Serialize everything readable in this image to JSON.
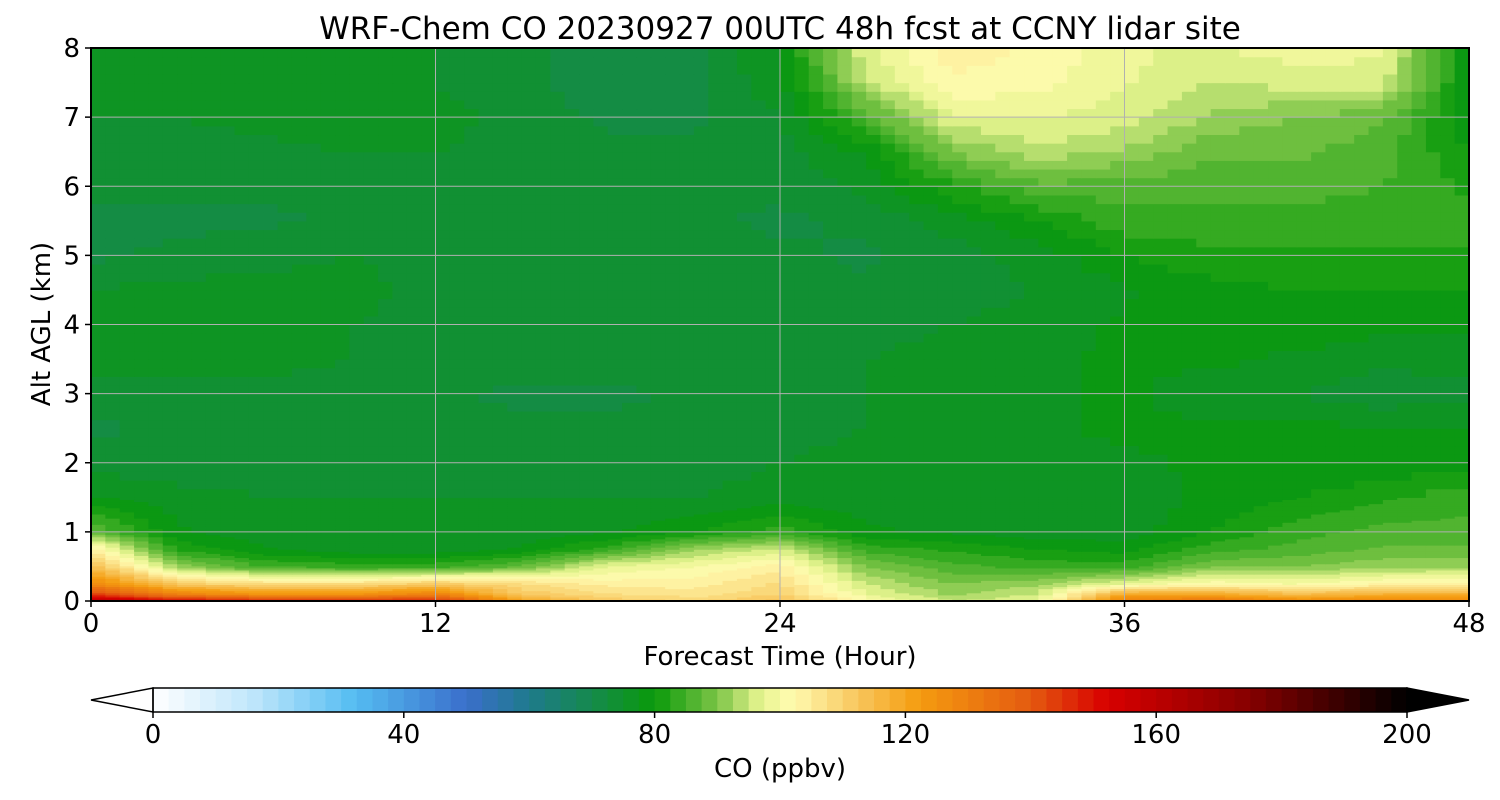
{
  "chart_data": {
    "type": "heatmap",
    "title": "WRF-Chem CO  20230927 00UTC 48h fcst at CCNY lidar site",
    "xlabel": "Forecast Time (Hour)",
    "ylabel": "Alt AGL (km)",
    "xlim": [
      0,
      48
    ],
    "ylim": [
      0,
      8
    ],
    "xticks": [
      "0",
      "12",
      "24",
      "36",
      "48"
    ],
    "yticks": [
      "0",
      "1",
      "2",
      "3",
      "4",
      "5",
      "6",
      "7",
      "8"
    ],
    "grid": true,
    "z_note": "approximate CO values read from the contour colours",
    "x": [
      0,
      3,
      6,
      9,
      12,
      15,
      18,
      21,
      24,
      27,
      30,
      33,
      36,
      39,
      42,
      45,
      48
    ],
    "y": [
      0,
      0.1,
      0.25,
      0.5,
      0.75,
      1,
      1.5,
      2,
      2.5,
      3,
      3.5,
      4,
      4.5,
      5,
      5.5,
      6,
      6.5,
      7,
      7.5,
      8
    ],
    "z": [
      [
        165,
        155,
        150,
        150,
        150,
        122,
        112,
        110,
        114,
        102,
        95,
        98,
        130,
        135,
        128,
        130,
        128
      ],
      [
        145,
        130,
        125,
        125,
        130,
        112,
        108,
        106,
        110,
        98,
        92,
        95,
        120,
        120,
        115,
        118,
        118
      ],
      [
        128,
        112,
        108,
        108,
        112,
        108,
        104,
        104,
        108,
        95,
        90,
        92,
        98,
        102,
        100,
        103,
        104
      ],
      [
        115,
        92,
        85,
        84,
        84,
        88,
        98,
        100,
        104,
        90,
        86,
        84,
        84,
        90,
        90,
        92,
        92
      ],
      [
        105,
        82,
        78,
        76,
        76,
        78,
        84,
        92,
        96,
        84,
        82,
        80,
        79,
        84,
        86,
        88,
        88
      ],
      [
        88,
        78,
        76,
        75,
        75,
        76,
        77,
        80,
        84,
        78,
        77,
        76,
        76,
        80,
        84,
        86,
        86
      ],
      [
        78,
        76,
        75,
        75,
        75,
        75,
        75,
        75,
        76,
        76,
        76,
        76,
        76,
        78,
        80,
        82,
        84
      ],
      [
        74,
        73,
        74,
        74,
        74,
        74,
        74,
        74,
        75,
        76,
        77,
        77,
        77,
        78,
        78,
        78,
        79
      ],
      [
        72,
        73,
        74,
        73,
        73,
        73,
        73,
        73,
        74,
        75,
        76,
        77,
        78,
        78,
        78,
        78,
        78
      ],
      [
        74,
        74,
        74,
        73,
        73,
        72,
        72,
        73,
        74,
        75,
        76,
        77,
        78,
        76,
        75,
        73,
        74
      ],
      [
        76,
        76,
        76,
        75,
        74,
        74,
        74,
        74,
        74,
        75,
        76,
        77,
        78,
        78,
        77,
        76,
        76
      ],
      [
        76,
        77,
        76,
        75,
        74,
        74,
        74,
        74,
        74,
        74,
        75,
        76,
        78,
        79,
        79,
        78,
        78
      ],
      [
        75,
        76,
        76,
        76,
        74,
        74,
        74,
        74,
        74,
        73,
        74,
        75,
        77,
        79,
        80,
        80,
        80
      ],
      [
        72,
        73,
        74,
        75,
        74,
        74,
        74,
        74,
        73,
        72,
        74,
        76,
        80,
        82,
        82,
        82,
        82
      ],
      [
        72,
        72,
        72,
        73,
        74,
        74,
        74,
        73,
        72,
        73,
        76,
        80,
        84,
        84,
        84,
        84,
        84
      ],
      [
        73,
        73,
        73,
        73,
        74,
        74,
        74,
        73,
        73,
        76,
        82,
        87,
        86,
        86,
        86,
        85,
        82
      ],
      [
        74,
        74,
        74,
        75,
        75,
        74,
        73,
        73,
        74,
        78,
        90,
        94,
        92,
        88,
        88,
        86,
        80
      ],
      [
        75,
        75,
        76,
        77,
        76,
        74,
        72,
        72,
        75,
        86,
        97,
        98,
        96,
        92,
        90,
        88,
        78
      ],
      [
        76,
        76,
        76,
        76,
        75,
        73,
        71,
        72,
        77,
        94,
        102,
        101,
        98,
        95,
        96,
        96,
        78
      ],
      [
        76,
        76,
        76,
        76,
        75,
        73,
        71,
        72,
        78,
        97,
        104,
        102,
        98,
        97,
        99,
        98,
        78
      ]
    ],
    "colorbar": {
      "label": "CO  (ppbv)",
      "min": 0,
      "max": 200,
      "ticks": [
        "0",
        "40",
        "80",
        "120",
        "160",
        "200"
      ],
      "extend": "both",
      "stops": [
        [
          0,
          "#ffffff"
        ],
        [
          16,
          "#bfe6fb"
        ],
        [
          32,
          "#55bdf2"
        ],
        [
          50,
          "#3a6fcb"
        ],
        [
          60,
          "#1e7a8c"
        ],
        [
          70,
          "#158a4c"
        ],
        [
          80,
          "#0a9a0a"
        ],
        [
          90,
          "#7cc447"
        ],
        [
          97,
          "#e8f590"
        ],
        [
          102,
          "#fffbb0"
        ],
        [
          112,
          "#f8c860"
        ],
        [
          122,
          "#f59d10"
        ],
        [
          140,
          "#e45a10"
        ],
        [
          152,
          "#d80000"
        ],
        [
          175,
          "#850000"
        ],
        [
          200,
          "#000000"
        ]
      ]
    }
  }
}
